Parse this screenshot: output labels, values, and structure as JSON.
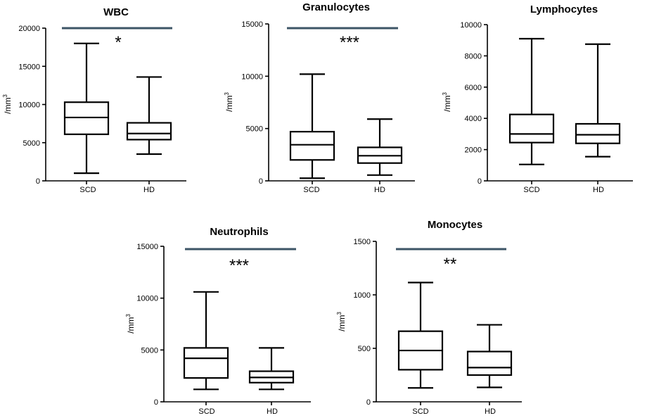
{
  "chart_data": [
    {
      "type": "box",
      "title": "WBC",
      "ylabel": "/mm",
      "ylabel_sup": "3",
      "ylim": [
        0,
        20000
      ],
      "yticks": [
        "0",
        "5000",
        "10000",
        "15000",
        "20000"
      ],
      "categories": [
        "SCD",
        "HD"
      ],
      "boxes": [
        {
          "name": "SCD",
          "min": 1000,
          "q1": 6100,
          "median": 8300,
          "q3": 10300,
          "max": 18000
        },
        {
          "name": "HD",
          "min": 3500,
          "q1": 5400,
          "median": 6200,
          "q3": 7600,
          "max": 13600
        }
      ],
      "significance": "*",
      "sig_color": "#3d5566"
    },
    {
      "type": "box",
      "title": "Granulocytes",
      "ylabel": "/mm",
      "ylabel_sup": "3",
      "ylim": [
        0,
        15000
      ],
      "yticks": [
        "0",
        "5000",
        "10000",
        "15000"
      ],
      "categories": [
        "SCD",
        "HD"
      ],
      "boxes": [
        {
          "name": "SCD",
          "min": 250,
          "q1": 2000,
          "median": 3450,
          "q3": 4700,
          "max": 10200
        },
        {
          "name": "HD",
          "min": 550,
          "q1": 1700,
          "median": 2400,
          "q3": 3200,
          "max": 5900
        }
      ],
      "significance": "***",
      "sig_color": "#3d5566"
    },
    {
      "type": "box",
      "title": "Lymphocytes",
      "ylabel": "/mm",
      "ylabel_sup": "3",
      "ylim": [
        0,
        10000
      ],
      "yticks": [
        "0",
        "2000",
        "4000",
        "6000",
        "8000",
        "10000"
      ],
      "categories": [
        "SCD",
        "HD"
      ],
      "boxes": [
        {
          "name": "SCD",
          "min": 1050,
          "q1": 2450,
          "median": 3000,
          "q3": 4250,
          "max": 9100
        },
        {
          "name": "HD",
          "min": 1550,
          "q1": 2400,
          "median": 2950,
          "q3": 3650,
          "max": 8750
        }
      ],
      "significance": "",
      "sig_color": "#3d5566"
    },
    {
      "type": "box",
      "title": "Neutrophils",
      "ylabel": "/mm",
      "ylabel_sup": "3",
      "ylim": [
        0,
        15000
      ],
      "yticks": [
        "0",
        "5000",
        "10000",
        "15000"
      ],
      "categories": [
        "SCD",
        "HD"
      ],
      "boxes": [
        {
          "name": "SCD",
          "min": 1200,
          "q1": 2300,
          "median": 4200,
          "q3": 5200,
          "max": 10600
        },
        {
          "name": "HD",
          "min": 1200,
          "q1": 1850,
          "median": 2350,
          "q3": 2950,
          "max": 5200
        }
      ],
      "significance": "***",
      "sig_color": "#3d5566"
    },
    {
      "type": "box",
      "title": "Monocytes",
      "ylabel": "/mm",
      "ylabel_sup": "3",
      "ylim": [
        0,
        1500
      ],
      "yticks": [
        "0",
        "500",
        "1000",
        "1500"
      ],
      "categories": [
        "SCD",
        "HD"
      ],
      "boxes": [
        {
          "name": "SCD",
          "min": 130,
          "q1": 300,
          "median": 480,
          "q3": 660,
          "max": 1115
        },
        {
          "name": "HD",
          "min": 135,
          "q1": 250,
          "median": 320,
          "q3": 470,
          "max": 720
        }
      ],
      "significance": "**",
      "sig_color": "#3d5566"
    }
  ]
}
